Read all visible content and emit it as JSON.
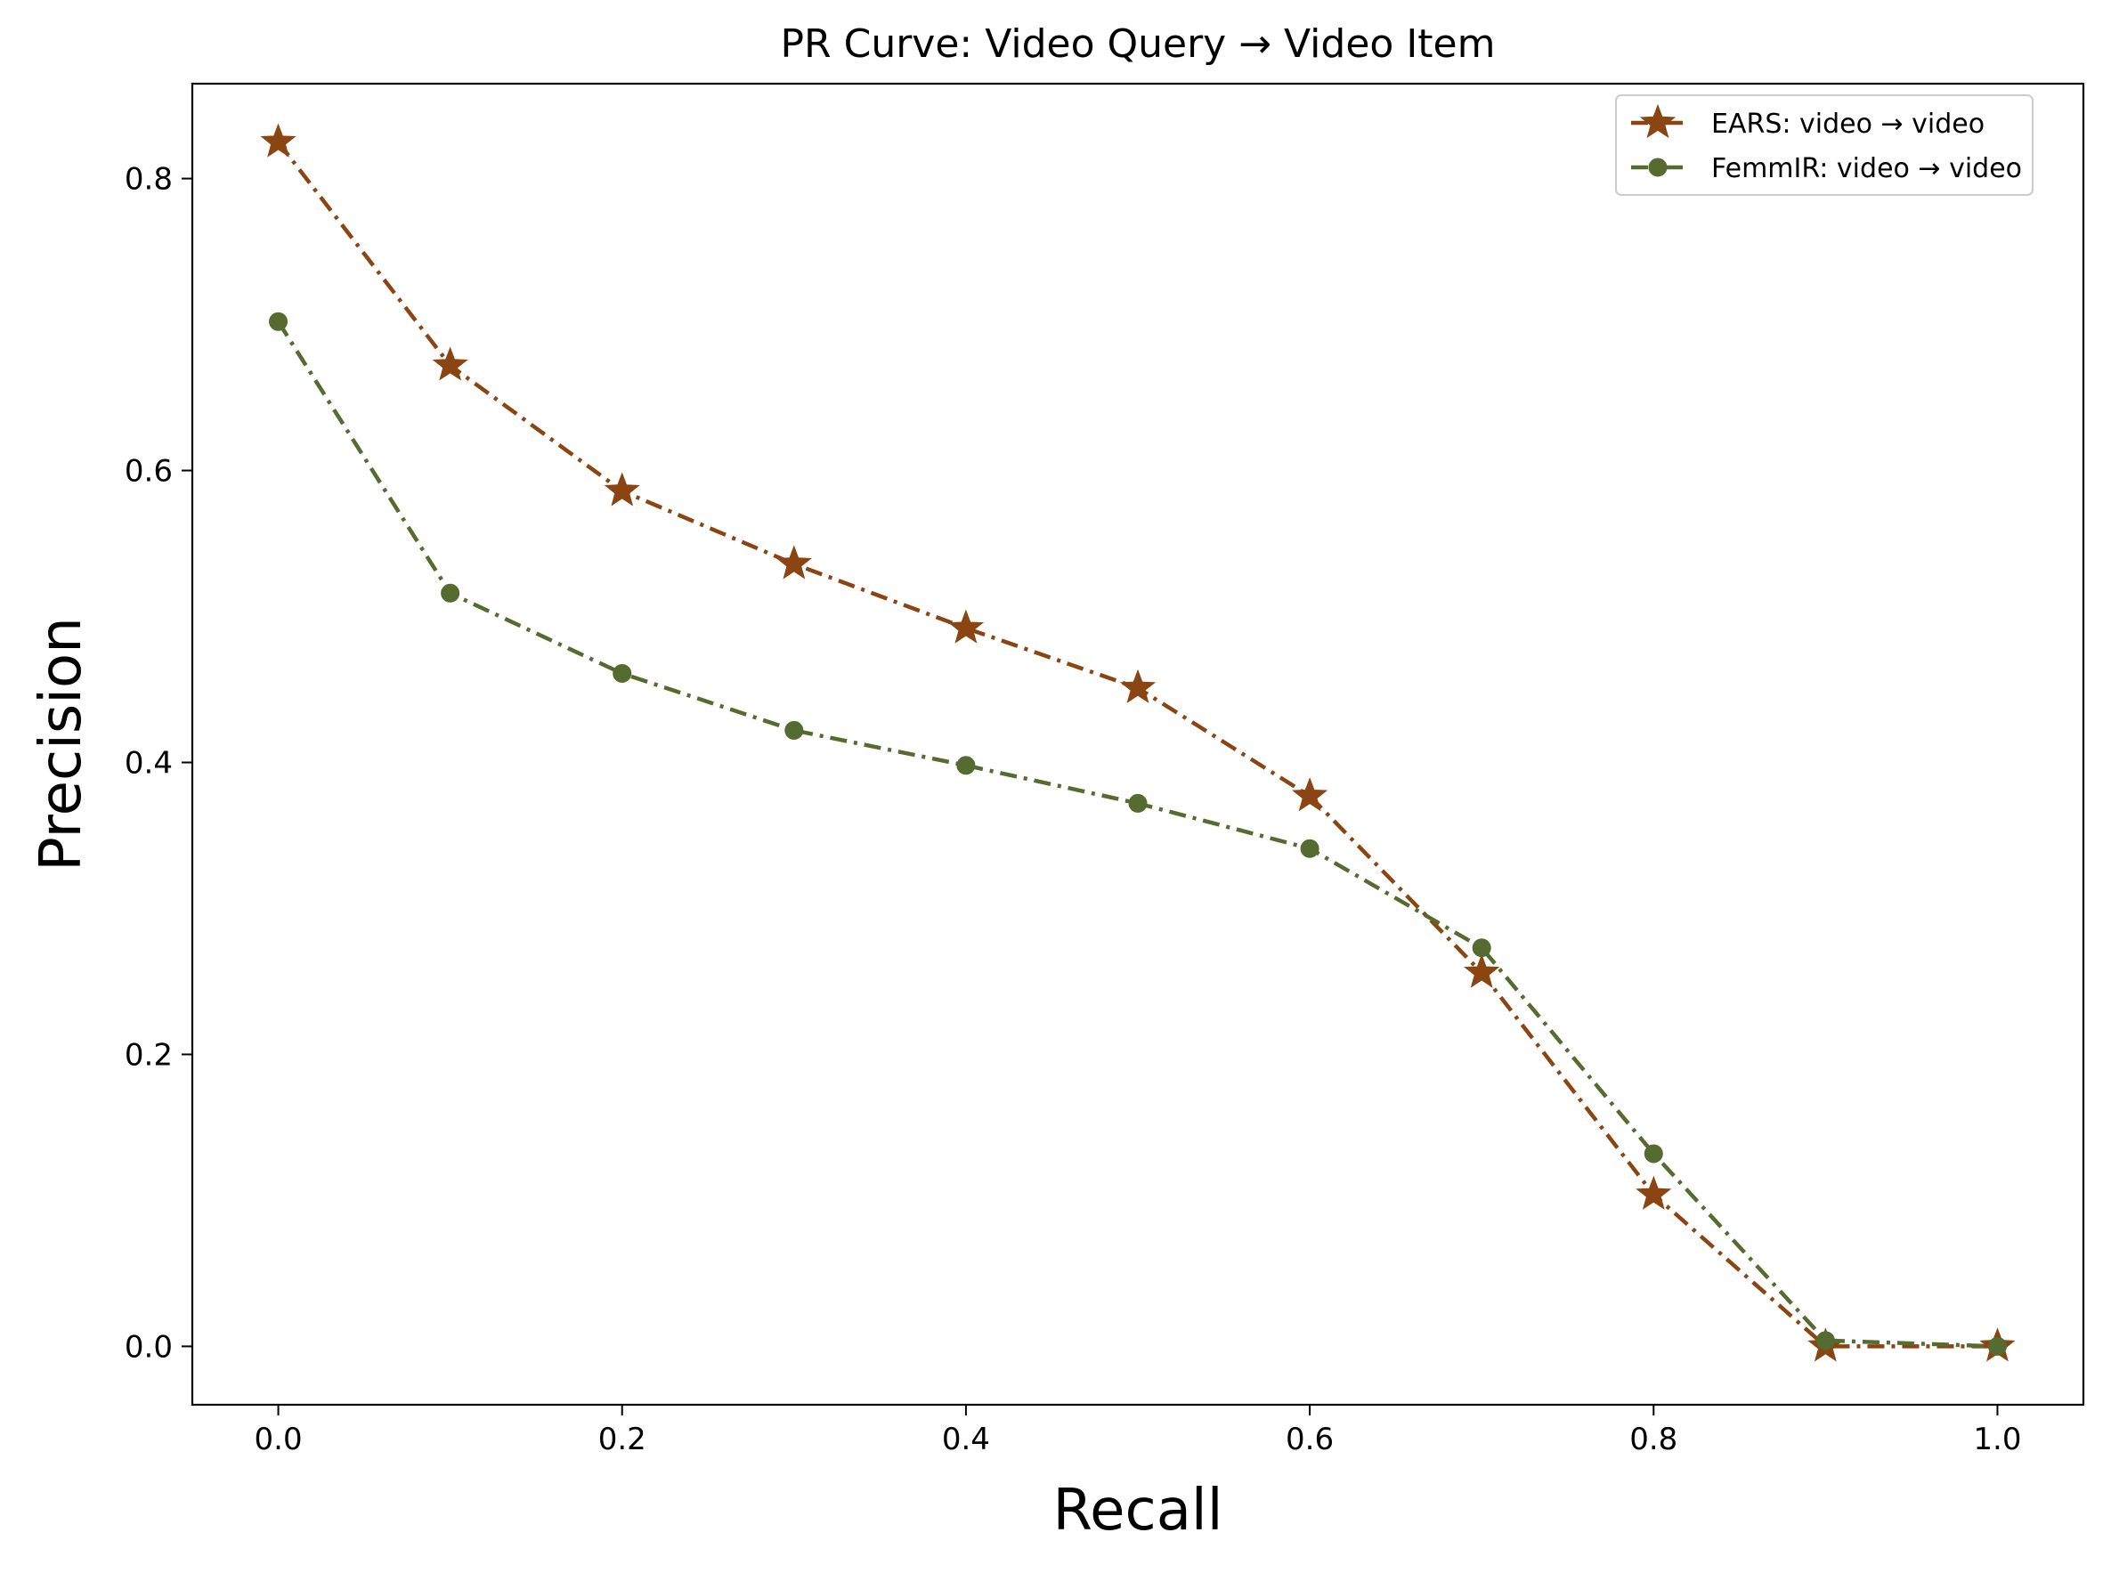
{
  "chart_data": {
    "type": "line",
    "title": "PR Curve: Video Query → Video Item",
    "xlabel": "Recall",
    "ylabel": "Precision",
    "xlim": [
      -0.05,
      1.05
    ],
    "ylim": [
      -0.04,
      0.865
    ],
    "xticks": [
      0.0,
      0.2,
      0.4,
      0.6,
      0.8,
      1.0
    ],
    "xtick_labels": [
      "0.0",
      "0.2",
      "0.4",
      "0.6",
      "0.8",
      "1.0"
    ],
    "yticks": [
      0.0,
      0.2,
      0.4,
      0.6,
      0.8
    ],
    "ytick_labels": [
      "0.0",
      "0.2",
      "0.4",
      "0.6",
      "0.8"
    ],
    "grid": false,
    "legend_position": "top-right",
    "x": [
      0.0,
      0.1,
      0.2,
      0.3,
      0.4,
      0.5,
      0.6,
      0.7,
      0.8,
      0.9,
      1.0
    ],
    "series": [
      {
        "name": "EARS: video → video",
        "color": "#8B4513",
        "marker": "star",
        "line_style": "dash-dot",
        "values": [
          0.825,
          0.672,
          0.586,
          0.536,
          0.492,
          0.451,
          0.377,
          0.256,
          0.104,
          0.0,
          0.0
        ]
      },
      {
        "name": "FemmIR: video → video",
        "color": "#556B2F",
        "marker": "circle",
        "line_style": "dash-dot",
        "values": [
          0.702,
          0.516,
          0.461,
          0.422,
          0.398,
          0.372,
          0.341,
          0.273,
          0.132,
          0.004,
          0.0
        ]
      }
    ]
  }
}
